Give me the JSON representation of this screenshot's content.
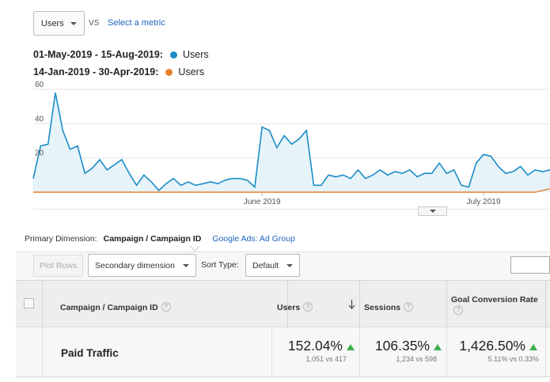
{
  "metric_selector": {
    "value": "Users",
    "icon": "chevron-down-icon"
  },
  "vs_label": "VS",
  "select_metric_link": "Select a metric",
  "legend": [
    {
      "dates": "01-May-2019 - 15-Aug-2019:",
      "metric": "Users",
      "color": "#1b8dc8"
    },
    {
      "dates": "14-Jan-2019 - 30-Apr-2019:",
      "metric": "Users",
      "color": "#e8822d"
    }
  ],
  "chart_data": {
    "type": "area",
    "title": "",
    "xlabel": "",
    "ylabel": "",
    "yticks": [
      "60",
      "40",
      "20"
    ],
    "ylim": [
      0,
      60
    ],
    "x_tick_labels": [
      "June 2019",
      "July 2019"
    ],
    "grid": true,
    "series": [
      {
        "name": "Users",
        "color": "#1b8dc8",
        "values": [
          8,
          27,
          28,
          58,
          36,
          25,
          27,
          11,
          14,
          19,
          13,
          16,
          19,
          11,
          4,
          10,
          6,
          1,
          5,
          8,
          4,
          6,
          4,
          5,
          6,
          5,
          7,
          8,
          8,
          7,
          3,
          38,
          36,
          26,
          33,
          28,
          31,
          36,
          4,
          4,
          10,
          9,
          10,
          8,
          13,
          8,
          10,
          13,
          10,
          12,
          11,
          13,
          9,
          11,
          11,
          17,
          11,
          13,
          4,
          3,
          17,
          22,
          21,
          15,
          11,
          12,
          15,
          10,
          13,
          12,
          13
        ]
      },
      {
        "name": "Users",
        "color": "#e8822d",
        "values": [
          0,
          0,
          0,
          0,
          0,
          0,
          0,
          0,
          0,
          0,
          0,
          0,
          0,
          0,
          0,
          0,
          0,
          0,
          0,
          0,
          0,
          0,
          0,
          0,
          0,
          0,
          0,
          0,
          0,
          0,
          0,
          0,
          0,
          0,
          0,
          0,
          0,
          0,
          0,
          0,
          0,
          0,
          0,
          0,
          0,
          0,
          0,
          0,
          0,
          0,
          0,
          0,
          0,
          0,
          0,
          0,
          0,
          0,
          0,
          0,
          0,
          0,
          0,
          0,
          0,
          0,
          0,
          0,
          0,
          1,
          2
        ]
      }
    ]
  },
  "primary_dimension": {
    "label": "Primary Dimension:",
    "current": "Campaign / Campaign ID",
    "alternative": "Google Ads: Ad Group"
  },
  "toolbar": {
    "plot_rows": "Plot Rows",
    "secondary_dimension": "Secondary dimension",
    "sort_type_label": "Sort Type:",
    "sort_type_value": "Default"
  },
  "table": {
    "headers": {
      "campaign": "Campaign / Campaign ID",
      "users": "Users",
      "sessions": "Sessions",
      "goal_conversion_rate": "Goal Conversion Rate",
      "help": "?"
    },
    "rows": [
      {
        "name": "Paid Traffic",
        "users_change": "152.04%",
        "users_compare": "1,051 vs 417",
        "sessions_change": "106.35%",
        "sessions_compare": "1,234 vs 598",
        "gcr_change": "1,426.50%",
        "gcr_compare": "5.11% vs 0.33%"
      }
    ]
  }
}
